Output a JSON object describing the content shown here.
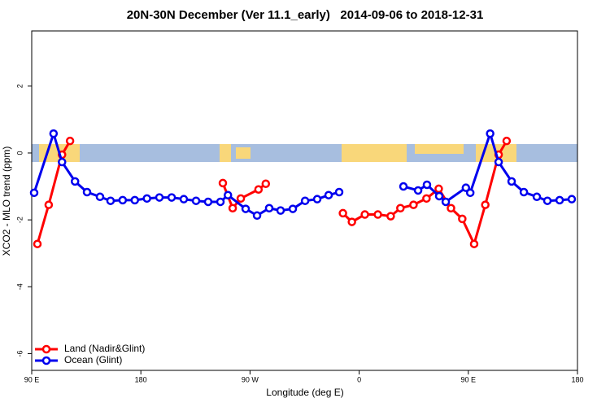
{
  "chart_data": {
    "type": "line",
    "title": "20N-30N December (Ver 11.1_early)   2014-09-06 to 2018-12-31",
    "x_label": "Longitude (deg E)",
    "y_label": "XCO2 - MLO trend (ppm)",
    "xlim": [
      90,
      540
    ],
    "ylim": [
      -6.5,
      3.65
    ],
    "xticks": [
      {
        "value": 90,
        "label": "90 E"
      },
      180,
      {
        "value": 270,
        "label": "90 W"
      },
      {
        "value": 360,
        "label": "0"
      },
      {
        "value": 450,
        "label": "90 E"
      },
      {
        "value": 540,
        "label": "180"
      }
    ],
    "yticks": [
      2,
      0,
      -2,
      -4,
      -6
    ],
    "legend": "bottomleft",
    "series": [
      {
        "name": "Land (Nadir&Glint)",
        "color": "#ff0000",
        "x": [
          94.7,
          104,
          115,
          121.6,
          null,
          247.6,
          255.7,
          262.4,
          277,
          283,
          null,
          346.6,
          354,
          364.7,
          375.4,
          386,
          394,
          404.8,
          415.5,
          425.6,
          435.7,
          445,
          454.8,
          464,
          475,
          481.6
        ],
        "values": [
          -2.72,
          -1.55,
          -0.05,
          0.36,
          null,
          -0.9,
          -1.65,
          -1.36,
          -1.09,
          -0.92,
          null,
          -1.8,
          -2.06,
          -1.84,
          -1.84,
          -1.89,
          -1.65,
          -1.55,
          -1.36,
          -1.07,
          -1.65,
          -1.97,
          -2.72,
          -1.55,
          -0.05,
          0.36
        ]
      },
      {
        "name": "Ocean (Glint)",
        "color": "#0000ee",
        "x": [
          92,
          108,
          115,
          125.7,
          135.6,
          146.3,
          155,
          165,
          175,
          185,
          195.3,
          205.4,
          215.4,
          225.5,
          235.5,
          245.6,
          251.8,
          266.4,
          275.8,
          285.8,
          295.2,
          305.3,
          315.4,
          325.4,
          334.8,
          343.5,
          null,
          396.5,
          408.6,
          415.9,
          426,
          431.4,
          448,
          451.6,
          468,
          475,
          485.7,
          495.8,
          506.5,
          515.2,
          525.3,
          535.3
        ],
        "values": [
          -1.19,
          0.58,
          -0.27,
          -0.85,
          -1.17,
          -1.31,
          -1.43,
          -1.41,
          -1.41,
          -1.36,
          -1.33,
          -1.33,
          -1.38,
          -1.43,
          -1.46,
          -1.46,
          -1.26,
          -1.67,
          -1.87,
          -1.65,
          -1.72,
          -1.67,
          -1.43,
          -1.38,
          -1.26,
          -1.17,
          null,
          -1.0,
          -1.12,
          -0.95,
          -1.29,
          -1.46,
          -1.04,
          -1.19,
          0.58,
          -0.27,
          -0.85,
          -1.17,
          -1.31,
          -1.43,
          -1.41,
          -1.38
        ]
      }
    ]
  }
}
